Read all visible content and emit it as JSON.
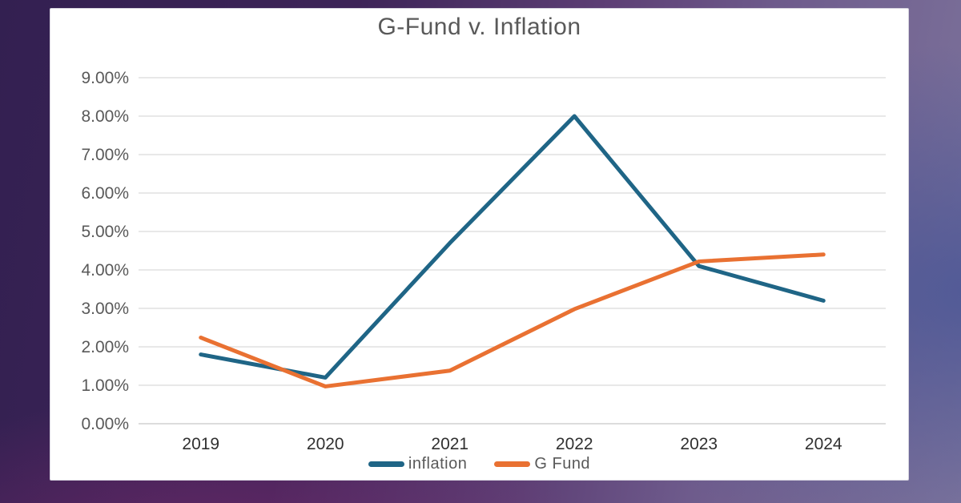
{
  "chart": {
    "title": "G-Fund v. Inflation"
  },
  "chart_data": {
    "type": "line",
    "title": "G-Fund v. Inflation",
    "categories": [
      "2019",
      "2020",
      "2021",
      "2022",
      "2023",
      "2024"
    ],
    "series": [
      {
        "name": "inflation",
        "color": "#1f6586",
        "values": [
          1.8,
          1.2,
          4.7,
          8.0,
          4.1,
          3.2
        ]
      },
      {
        "name": "G Fund",
        "color": "#e97132",
        "values": [
          2.24,
          0.97,
          1.38,
          2.98,
          4.22,
          4.4
        ]
      }
    ],
    "xlabel": "",
    "ylabel": "",
    "ylim": [
      0,
      9
    ],
    "ytick_step": 1,
    "ytick_labels": [
      "0.00%",
      "1.00%",
      "2.00%",
      "3.00%",
      "4.00%",
      "5.00%",
      "6.00%",
      "7.00%",
      "8.00%",
      "9.00%"
    ],
    "grid": true,
    "gridline_color": "#d9d9d9",
    "axis_line_color": "#c6c6c6",
    "ytick_label_color": "#595959",
    "xtick_label_color": "#303030",
    "legend_position": "bottom",
    "line_width": 5
  }
}
